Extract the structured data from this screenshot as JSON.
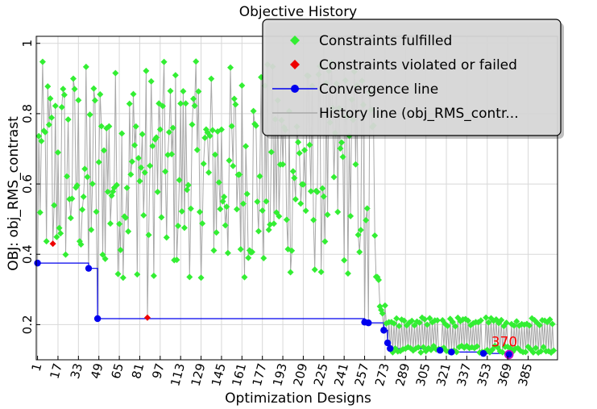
{
  "chart_data": {
    "type": "scatter",
    "title": "Objective History",
    "xlabel": "Optimization Designs",
    "ylabel": "OBJ: obj_RMS_contrast",
    "xlim": [
      0,
      408
    ],
    "ylim": [
      0.1,
      1.02
    ],
    "x_ticks": [
      1,
      17,
      33,
      49,
      65,
      81,
      97,
      113,
      129,
      145,
      161,
      177,
      193,
      209,
      225,
      241,
      257,
      273,
      289,
      305,
      321,
      337,
      353,
      369,
      385
    ],
    "y_ticks": [
      0.2,
      0.4,
      0.6,
      0.8,
      1
    ],
    "grid": true,
    "legend": {
      "position": "top-right",
      "entries": [
        {
          "label": "Constraints fulfilled",
          "color": "#33ee33",
          "marker": "diamond"
        },
        {
          "label": "Constraints violated or failed",
          "color": "#ee0000",
          "marker": "diamond"
        },
        {
          "label": "Convergence line",
          "color": "#0000ee",
          "marker": "circle"
        },
        {
          "label": "History line (obj_RMS_contr...",
          "color": "#aaaaaa",
          "marker": "line"
        }
      ]
    },
    "violated_points": [
      {
        "x": 13,
        "y": 0.43
      },
      {
        "x": 87,
        "y": 0.22
      }
    ],
    "convergence": [
      {
        "x": 1,
        "y": 0.375
      },
      {
        "x": 41,
        "y": 0.36
      },
      {
        "x": 48,
        "y": 0.217
      },
      {
        "x": 257,
        "y": 0.207
      },
      {
        "x": 260,
        "y": 0.205
      },
      {
        "x": 272,
        "y": 0.184
      },
      {
        "x": 275,
        "y": 0.148
      },
      {
        "x": 277,
        "y": 0.132
      },
      {
        "x": 316,
        "y": 0.127
      },
      {
        "x": 325,
        "y": 0.122
      },
      {
        "x": 350,
        "y": 0.118
      },
      {
        "x": 370,
        "y": 0.115
      }
    ],
    "annotation": {
      "text": "370",
      "x": 370,
      "y": 0.115,
      "color": "#ff0000"
    }
  }
}
